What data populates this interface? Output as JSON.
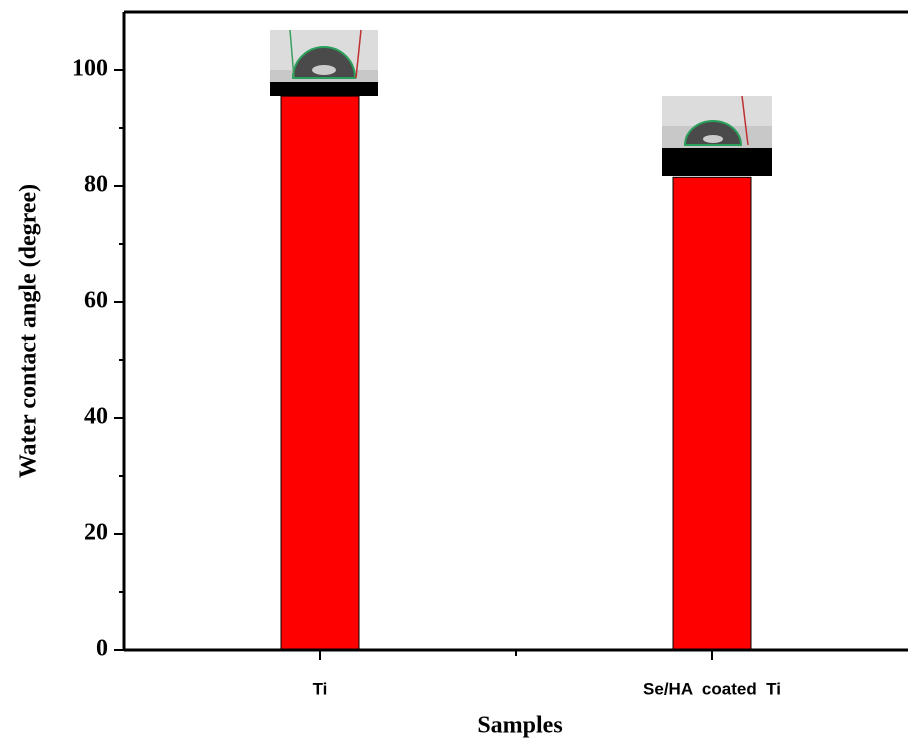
{
  "chart_data": {
    "type": "bar",
    "categories": [
      "Ti",
      "Se/HA  coated  Ti"
    ],
    "values": [
      95.5,
      81.5
    ],
    "color": "#ff0000",
    "xlabel": "Samples",
    "ylabel": "Water contact angle (degree)",
    "ylim": [
      0,
      110
    ],
    "yticks": [
      0,
      20,
      40,
      60,
      80,
      100
    ]
  }
}
